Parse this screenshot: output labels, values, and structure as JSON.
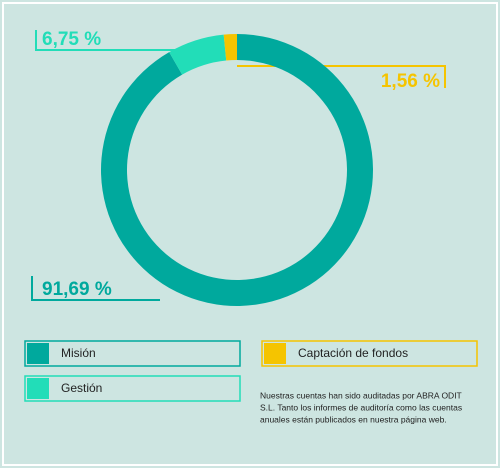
{
  "chart_data": {
    "type": "donut",
    "categories": [
      "Misión",
      "Gestión",
      "Captación de fondos"
    ],
    "values": [
      91.69,
      6.75,
      1.56
    ],
    "value_labels": [
      "91,69 %",
      "6,75 %",
      "1,56 %"
    ],
    "colors": [
      "#00a99d",
      "#22ddb8",
      "#f5c400"
    ],
    "note": [
      "Nuestras cuentas han sido auditadas por ABRA ODIT",
      "S.L. Tanto los informes de auditoría como las cuentas",
      "anuales están publicados en nuestra página web."
    ]
  }
}
